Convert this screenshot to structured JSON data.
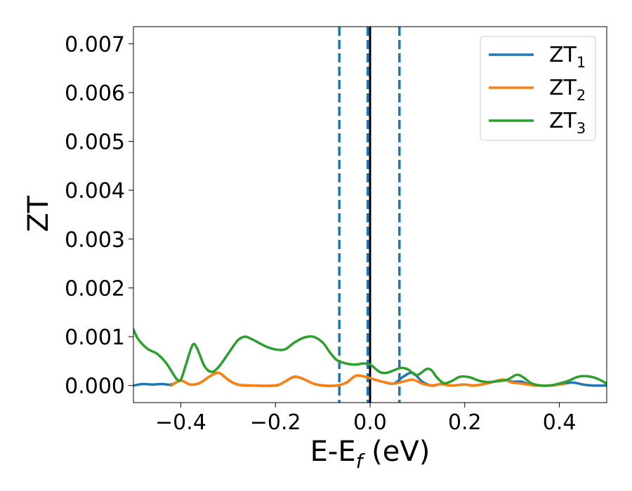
{
  "chart_data": {
    "type": "line",
    "xlabel_main": "E-E",
    "xlabel_sub": "f",
    "xlabel_tail": " (eV)",
    "ylabel": "ZT",
    "xlim": [
      -0.5,
      0.5
    ],
    "ylim": [
      -0.00035,
      0.00735
    ],
    "xticks": [
      -0.4,
      -0.2,
      0.0,
      0.2,
      0.4
    ],
    "xtick_labels": [
      "−0.4",
      "−0.2",
      "0.0",
      "0.2",
      "0.4"
    ],
    "yticks": [
      0.0,
      0.001,
      0.002,
      0.003,
      0.004,
      0.005,
      0.006,
      0.007
    ],
    "ytick_labels": [
      "0.000",
      "0.001",
      "0.002",
      "0.003",
      "0.004",
      "0.005",
      "0.006",
      "0.007"
    ],
    "legend_position": "top-right",
    "vlines": [
      {
        "x": -0.065,
        "style": "dashed",
        "color": "#1f77b4"
      },
      {
        "x": -0.005,
        "style": "dashed",
        "color": "#1f77b4"
      },
      {
        "x": 0.0,
        "style": "solid",
        "color": "#000000"
      },
      {
        "x": 0.062,
        "style": "dashed",
        "color": "#1f77b4"
      }
    ],
    "series": [
      {
        "name": "ZT",
        "sub": "1",
        "color": "#1f77b4",
        "points": [
          [
            -0.5,
            0.0
          ],
          [
            -0.48,
            3e-05
          ],
          [
            -0.46,
            2e-05
          ],
          [
            -0.44,
            3e-05
          ],
          [
            -0.42,
            2e-05
          ],
          [
            -0.4,
            0.0001
          ],
          [
            -0.38,
            2e-05
          ],
          [
            -0.36,
            5e-05
          ],
          [
            -0.34,
            0.00018
          ],
          [
            -0.32,
            0.00026
          ],
          [
            -0.3,
            0.00012
          ],
          [
            -0.28,
            2e-05
          ],
          [
            -0.25,
            0.0
          ],
          [
            -0.2,
            0.0
          ],
          [
            -0.18,
            8e-05
          ],
          [
            -0.16,
            0.00018
          ],
          [
            -0.14,
            0.00013
          ],
          [
            -0.12,
            4e-05
          ],
          [
            -0.1,
            0.0
          ],
          [
            -0.07,
            0.0
          ],
          [
            -0.05,
            6e-05
          ],
          [
            -0.03,
            0.0002
          ],
          [
            -0.01,
            0.00018
          ],
          [
            0.01,
            0.00012
          ],
          [
            0.03,
            7e-05
          ],
          [
            0.05,
            4e-05
          ],
          [
            0.07,
            0.00018
          ],
          [
            0.09,
            0.00026
          ],
          [
            0.11,
            8e-05
          ],
          [
            0.13,
            0.0
          ],
          [
            0.15,
            3e-05
          ],
          [
            0.17,
            0.0
          ],
          [
            0.2,
            2e-05
          ],
          [
            0.22,
            0.0
          ],
          [
            0.25,
            5e-05
          ],
          [
            0.28,
            0.00012
          ],
          [
            0.3,
            8e-05
          ],
          [
            0.32,
            8e-05
          ],
          [
            0.34,
            1e-05
          ],
          [
            0.36,
            0.0
          ],
          [
            0.38,
            0.0
          ],
          [
            0.41,
            4e-05
          ],
          [
            0.43,
            6e-05
          ],
          [
            0.45,
            2e-05
          ],
          [
            0.47,
            0.0
          ],
          [
            0.5,
            0.0
          ]
        ]
      },
      {
        "name": "ZT",
        "sub": "2",
        "color": "#ff7f0e",
        "points": [
          [
            -0.42,
            0.0
          ],
          [
            -0.4,
            0.0001
          ],
          [
            -0.38,
            2e-05
          ],
          [
            -0.36,
            5e-05
          ],
          [
            -0.34,
            0.00018
          ],
          [
            -0.32,
            0.00026
          ],
          [
            -0.3,
            0.00012
          ],
          [
            -0.28,
            2e-05
          ],
          [
            -0.25,
            0.0
          ],
          [
            -0.2,
            0.0
          ],
          [
            -0.18,
            8e-05
          ],
          [
            -0.16,
            0.00018
          ],
          [
            -0.14,
            0.00013
          ],
          [
            -0.12,
            4e-05
          ],
          [
            -0.1,
            0.0
          ],
          [
            -0.07,
            0.0
          ],
          [
            -0.05,
            6e-05
          ],
          [
            -0.03,
            0.0002
          ],
          [
            -0.01,
            0.00018
          ],
          [
            0.01,
            0.00012
          ],
          [
            0.03,
            7e-05
          ],
          [
            0.05,
            4e-05
          ],
          [
            0.07,
            8e-05
          ],
          [
            0.09,
            0.00012
          ],
          [
            0.11,
            4e-05
          ],
          [
            0.13,
            0.0
          ],
          [
            0.15,
            3e-05
          ],
          [
            0.17,
            0.0
          ],
          [
            0.2,
            2e-05
          ],
          [
            0.22,
            0.0
          ],
          [
            0.25,
            5e-05
          ],
          [
            0.28,
            0.00012
          ],
          [
            0.3,
            6e-05
          ],
          [
            0.32,
            4e-05
          ],
          [
            0.34,
            1e-05
          ],
          [
            0.36,
            0.0
          ],
          [
            0.38,
            0.0
          ],
          [
            0.41,
            3e-05
          ]
        ]
      },
      {
        "name": "ZT",
        "sub": "3",
        "color": "#2ca02c",
        "points": [
          [
            -0.5,
            0.00115
          ],
          [
            -0.49,
            0.00095
          ],
          [
            -0.47,
            0.00075
          ],
          [
            -0.45,
            0.00065
          ],
          [
            -0.43,
            0.00045
          ],
          [
            -0.41,
            0.00015
          ],
          [
            -0.4,
            0.00012
          ],
          [
            -0.39,
            0.0004
          ],
          [
            -0.375,
            0.00083
          ],
          [
            -0.365,
            0.00075
          ],
          [
            -0.35,
            0.0004
          ],
          [
            -0.335,
            0.00028
          ],
          [
            -0.32,
            0.00038
          ],
          [
            -0.3,
            0.00065
          ],
          [
            -0.28,
            0.00092
          ],
          [
            -0.265,
            0.001
          ],
          [
            -0.25,
            0.00095
          ],
          [
            -0.22,
            0.0008
          ],
          [
            -0.2,
            0.00074
          ],
          [
            -0.18,
            0.00074
          ],
          [
            -0.16,
            0.00088
          ],
          [
            -0.14,
            0.00098
          ],
          [
            -0.12,
            0.001
          ],
          [
            -0.1,
            0.00088
          ],
          [
            -0.085,
            0.00068
          ],
          [
            -0.07,
            0.00052
          ],
          [
            -0.05,
            0.00045
          ],
          [
            -0.03,
            0.00043
          ],
          [
            -0.015,
            0.00045
          ],
          [
            0.0,
            0.00043
          ],
          [
            0.02,
            0.00028
          ],
          [
            0.035,
            0.00026
          ],
          [
            0.05,
            0.00031
          ],
          [
            0.065,
            0.00036
          ],
          [
            0.08,
            0.00033
          ],
          [
            0.095,
            0.00022
          ],
          [
            0.105,
            0.00024
          ],
          [
            0.12,
            0.00034
          ],
          [
            0.13,
            0.00031
          ],
          [
            0.14,
            0.00018
          ],
          [
            0.155,
            5e-05
          ],
          [
            0.17,
            8e-05
          ],
          [
            0.19,
            0.00018
          ],
          [
            0.21,
            0.00017
          ],
          [
            0.23,
            0.0001
          ],
          [
            0.25,
            7e-05
          ],
          [
            0.27,
            9e-05
          ],
          [
            0.29,
            0.00012
          ],
          [
            0.31,
            0.00022
          ],
          [
            0.325,
            0.00016
          ],
          [
            0.34,
            5e-05
          ],
          [
            0.36,
            0.0
          ],
          [
            0.38,
            0.0
          ],
          [
            0.4,
            4e-05
          ],
          [
            0.42,
            0.0001
          ],
          [
            0.44,
            0.00018
          ],
          [
            0.46,
            0.00019
          ],
          [
            0.48,
            0.00014
          ],
          [
            0.5,
            4e-05
          ]
        ]
      }
    ]
  }
}
